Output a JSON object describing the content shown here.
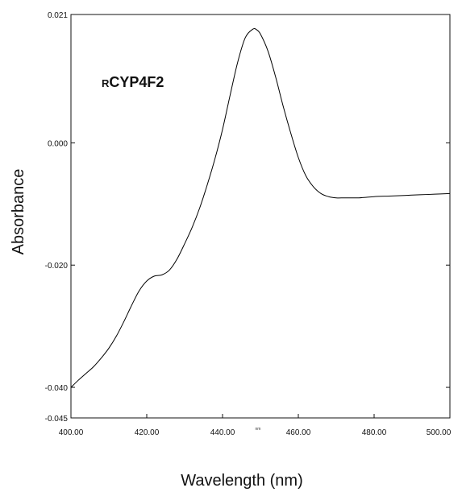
{
  "chart_data": {
    "type": "line",
    "title": "",
    "xlabel": "Wavelength (nm)",
    "ylabel": "Absorbance",
    "x_unit_mark": "nm",
    "annotation": {
      "prefix": "R",
      "main": "CYP4F2"
    },
    "xlim": [
      400,
      500
    ],
    "ylim": [
      -0.045,
      0.021
    ],
    "xticks": [
      {
        "value": 400,
        "label": "400.00"
      },
      {
        "value": 420,
        "label": "420.00"
      },
      {
        "value": 440,
        "label": "440.00"
      },
      {
        "value": 460,
        "label": "460.00"
      },
      {
        "value": 480,
        "label": "480.00"
      },
      {
        "value": 500,
        "label": "500.00"
      }
    ],
    "yticks": [
      {
        "value": 0.021,
        "label": "0.021"
      },
      {
        "value": 0.0,
        "label": "0.000"
      },
      {
        "value": -0.02,
        "label": "-0.020"
      },
      {
        "value": -0.04,
        "label": "-0.040"
      },
      {
        "value": -0.045,
        "label": "-0.045"
      }
    ],
    "grid": false,
    "series": [
      {
        "color": "#000000",
        "x": [
          400,
          402,
          404,
          406,
          408,
          410,
          412,
          414,
          416,
          418,
          420,
          422,
          424,
          426,
          428,
          430,
          432,
          434,
          436,
          438,
          440,
          442,
          444,
          446,
          448,
          449,
          450,
          452,
          454,
          456,
          458,
          460,
          462,
          464,
          466,
          468,
          470,
          472,
          474,
          476,
          478,
          480,
          484,
          488,
          492,
          496,
          500
        ],
        "y": [
          -0.04,
          -0.0388,
          -0.0377,
          -0.0366,
          -0.0352,
          -0.0336,
          -0.0316,
          -0.0292,
          -0.0266,
          -0.0242,
          -0.0226,
          -0.0218,
          -0.0216,
          -0.0208,
          -0.019,
          -0.0165,
          -0.0138,
          -0.0106,
          -0.0068,
          -0.0026,
          0.0022,
          0.0078,
          0.0132,
          0.0172,
          0.0186,
          0.0185,
          0.0178,
          0.015,
          0.0108,
          0.006,
          0.0016,
          -0.0024,
          -0.0054,
          -0.0072,
          -0.0083,
          -0.0088,
          -0.009,
          -0.009,
          -0.009,
          -0.009,
          -0.0089,
          -0.0088,
          -0.0087,
          -0.0086,
          -0.0085,
          -0.0084,
          -0.0083
        ]
      }
    ]
  }
}
